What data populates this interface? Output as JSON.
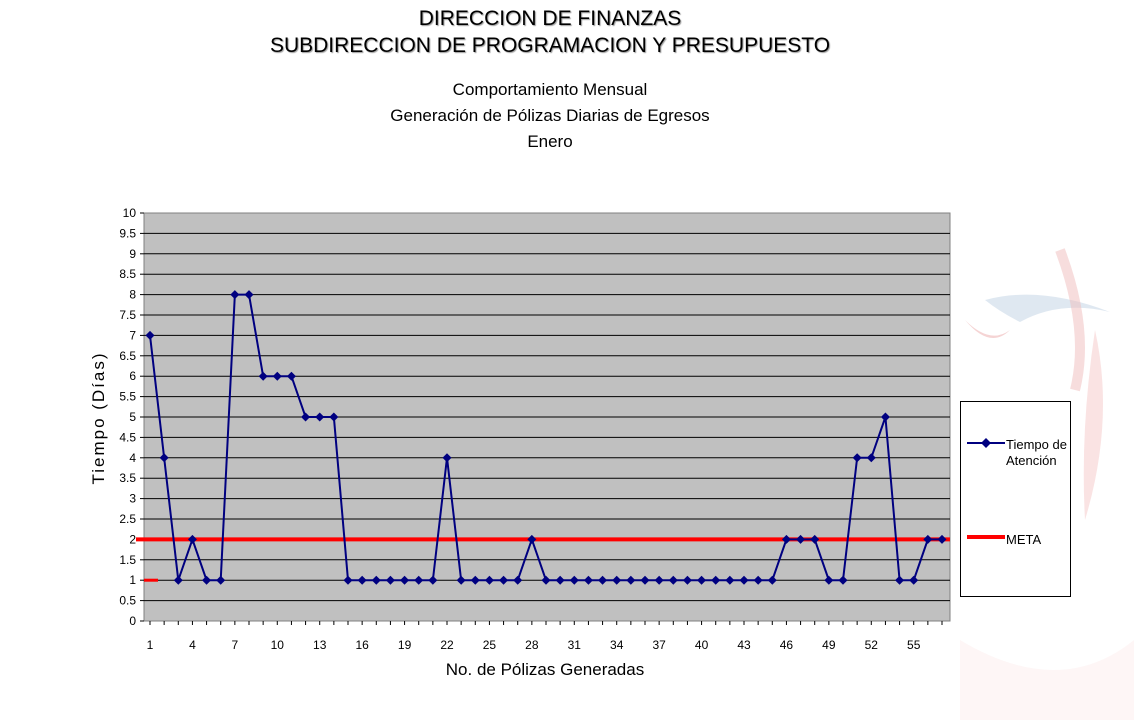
{
  "header": {
    "org_line1": "DIRECCION DE FINANZAS",
    "org_line2": "SUBDIRECCION DE PROGRAMACION Y PRESUPUESTO",
    "title_line1": "Comportamiento Mensual",
    "title_line2": "Generación de Pólizas Diarias de Egresos",
    "title_line3": "Enero"
  },
  "legend": {
    "series_label": "Tiempo de Atención",
    "meta_label": "META"
  },
  "colors": {
    "series": "#000080",
    "meta": "#ff0000",
    "plot_bg": "#c0c0c0"
  },
  "chart_data": {
    "type": "line",
    "title": "Comportamiento Mensual Generación de Pólizas Diarias de Egresos Enero",
    "xlabel": "No. de Pólizas Generadas",
    "ylabel": "Tiempo (Días)",
    "ylim": [
      0,
      10
    ],
    "ytick_step": 0.5,
    "x_tick_labels": [
      "1",
      "4",
      "7",
      "10",
      "13",
      "16",
      "19",
      "22",
      "25",
      "28",
      "31",
      "34",
      "37",
      "40",
      "43",
      "46",
      "49",
      "52",
      "55"
    ],
    "grid": "horizontal",
    "legend_position": "right",
    "x": [
      1,
      2,
      3,
      4,
      5,
      6,
      7,
      8,
      9,
      10,
      11,
      12,
      13,
      14,
      15,
      16,
      17,
      18,
      19,
      20,
      21,
      22,
      23,
      24,
      25,
      26,
      27,
      28,
      29,
      30,
      31,
      32,
      33,
      34,
      35,
      36,
      37,
      38,
      39,
      40,
      41,
      42,
      43,
      44,
      45,
      46,
      47,
      48,
      49,
      50,
      51,
      52,
      53,
      54,
      55,
      56,
      57
    ],
    "series": [
      {
        "name": "Tiempo de Atención",
        "values": [
          7,
          4,
          1,
          2,
          1,
          1,
          8,
          8,
          6,
          6,
          6,
          5,
          5,
          5,
          1,
          1,
          1,
          1,
          1,
          1,
          1,
          4,
          1,
          1,
          1,
          1,
          1,
          2,
          1,
          1,
          1,
          1,
          1,
          1,
          1,
          1,
          1,
          1,
          1,
          1,
          1,
          1,
          1,
          1,
          1,
          2,
          2,
          2,
          1,
          1,
          4,
          4,
          5,
          1,
          1,
          2,
          2
        ]
      },
      {
        "name": "META",
        "value": 2
      }
    ]
  }
}
